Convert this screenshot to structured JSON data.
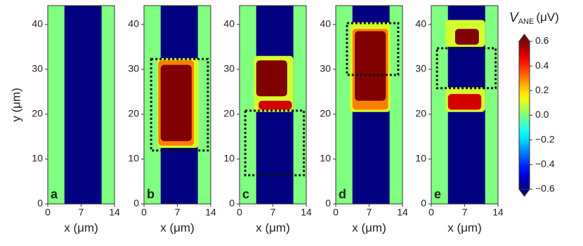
{
  "chart_data": [
    {
      "type": "heatmap",
      "panel_label": "a",
      "xlabel": "x (μm)",
      "ylabel": "y (μm)",
      "xlim": [
        0,
        14
      ],
      "xticks": [
        0,
        7,
        14
      ],
      "ylim": [
        0,
        44.2
      ],
      "yticks": [
        0,
        10,
        20,
        30,
        40
      ],
      "regions": [
        {
          "x": [
            0,
            14
          ],
          "y": [
            0,
            44.2
          ],
          "value": 0
        },
        {
          "x": [
            3.5,
            11.3
          ],
          "y": [
            0,
            44.2
          ],
          "value": -0.6
        }
      ]
    },
    {
      "type": "heatmap",
      "panel_label": "b",
      "xlabel": "x (μm)",
      "xlim": [
        0,
        14
      ],
      "xticks": [
        0,
        7,
        14
      ],
      "ylim": [
        0,
        44.2
      ],
      "yticks": [
        0,
        10,
        20,
        30,
        40
      ],
      "regions": [
        {
          "x": [
            0,
            14
          ],
          "y": [
            0,
            44.2
          ],
          "value": 0
        },
        {
          "x": [
            3.5,
            11.3
          ],
          "y": [
            0,
            44.2
          ],
          "value": -0.6
        },
        {
          "x": [
            2.8,
            11.5
          ],
          "y": [
            12.5,
            32.5
          ],
          "value": 0.1
        },
        {
          "x": [
            3,
            10.5
          ],
          "y": [
            13,
            32
          ],
          "value": 0.3
        },
        {
          "x": [
            3.5,
            10
          ],
          "y": [
            14,
            31
          ],
          "value": 0.6
        }
      ],
      "box": {
        "x": [
          1.5,
          13.4
        ],
        "y": [
          11.9,
          32.3
        ]
      }
    },
    {
      "type": "heatmap",
      "panel_label": "c",
      "xlabel": "x (μm)",
      "xlim": [
        0,
        14
      ],
      "xticks": [
        0,
        7,
        14
      ],
      "ylim": [
        0,
        44.2
      ],
      "yticks": [
        0,
        10,
        20,
        30,
        40
      ],
      "regions": [
        {
          "x": [
            0,
            14
          ],
          "y": [
            0,
            44.2
          ],
          "value": 0
        },
        {
          "x": [
            3.5,
            11.3
          ],
          "y": [
            0,
            44.2
          ],
          "value": -0.6
        },
        {
          "x": [
            3,
            11.3
          ],
          "y": [
            20.5,
            33
          ],
          "value": 0.1
        },
        {
          "x": [
            3.5,
            10
          ],
          "y": [
            24,
            32
          ],
          "value": 0.6
        },
        {
          "x": [
            4,
            11
          ],
          "y": [
            21,
            23
          ],
          "value": 0.5
        }
      ],
      "box": {
        "x": [
          1.2,
          13.5
        ],
        "y": [
          6.4,
          20.8
        ]
      }
    },
    {
      "type": "heatmap",
      "panel_label": "d",
      "xlabel": "x (μm)",
      "xlim": [
        0,
        14
      ],
      "xticks": [
        0,
        7,
        14
      ],
      "ylim": [
        0,
        44.2
      ],
      "yticks": [
        0,
        10,
        20,
        30,
        40
      ],
      "regions": [
        {
          "x": [
            0,
            14
          ],
          "y": [
            0,
            44.2
          ],
          "value": 0
        },
        {
          "x": [
            3.5,
            11.3
          ],
          "y": [
            0,
            44.2
          ],
          "value": -0.6
        },
        {
          "x": [
            3,
            11.5
          ],
          "y": [
            20.5,
            40.5
          ],
          "value": 0.1
        },
        {
          "x": [
            3.5,
            11
          ],
          "y": [
            21,
            39
          ],
          "value": 0.3
        },
        {
          "x": [
            4,
            10.5
          ],
          "y": [
            23,
            38.5
          ],
          "value": 0.6
        }
      ],
      "box": {
        "x": [
          2.35,
          13.1
        ],
        "y": [
          28.75,
          40.3
        ]
      }
    },
    {
      "type": "heatmap",
      "panel_label": "e",
      "xlabel": "x (μm)",
      "xlim": [
        0,
        14
      ],
      "xticks": [
        0,
        7,
        14
      ],
      "ylim": [
        0,
        44.2
      ],
      "yticks": [
        0,
        10,
        20,
        30,
        40
      ],
      "regions": [
        {
          "x": [
            0,
            14
          ],
          "y": [
            0,
            44.2
          ],
          "value": 0
        },
        {
          "x": [
            3.5,
            11.3
          ],
          "y": [
            0,
            44.2
          ],
          "value": -0.6
        },
        {
          "x": [
            3,
            11.3
          ],
          "y": [
            35,
            41
          ],
          "value": 0.1
        },
        {
          "x": [
            5,
            10
          ],
          "y": [
            35.5,
            39
          ],
          "value": 0.6
        },
        {
          "x": [
            3,
            11.3
          ],
          "y": [
            20.5,
            26
          ],
          "value": 0.1
        },
        {
          "x": [
            3.5,
            10.5
          ],
          "y": [
            21,
            24.5
          ],
          "value": 0.5
        }
      ],
      "box": {
        "x": [
          1.2,
          13.5
        ],
        "y": [
          25.8,
          34.7
        ]
      }
    }
  ],
  "colorbar": {
    "label": {
      "symbol": "V",
      "subscript": "ANE",
      "unit": "(μV)"
    },
    "lim": [
      -0.6,
      0.6
    ],
    "ticks": [
      0.6,
      0.4,
      0.2,
      {
        "value": 0,
        "label": "0.0"
      },
      {
        "value": -0.2,
        "label": "−0.2"
      },
      {
        "value": -0.4,
        "label": "−0.4"
      },
      {
        "value": -0.6,
        "label": "−0.6"
      }
    ]
  }
}
